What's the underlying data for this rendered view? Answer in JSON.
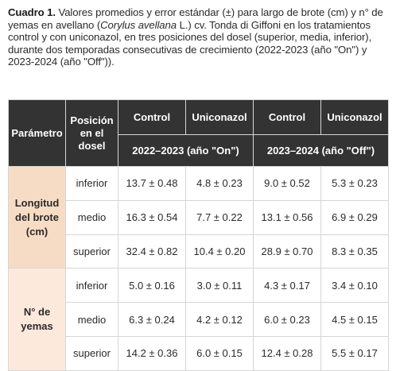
{
  "caption": {
    "label": "Cuadro 1.",
    "part1": " Valores promedios y error estándar (±) para largo de brote (cm) y n° de yemas en avellano (",
    "species": "Corylus avellana",
    "part2": " L.) cv. Tonda di Giffoni en los tratamientos control y con uniconazol, en tres posiciones del dosel (superior, media, inferior), durante dos temporadas consecutivas de crecimiento (2022-2023 (año \"On\") y 2023-2024 (año \"Off\"))."
  },
  "table": {
    "header": {
      "parametro": "Parámetro",
      "posicion": "Posición en el dosel",
      "treatments": [
        "Control",
        "Uniconazol",
        "Control",
        "Uniconazol"
      ],
      "seasons": [
        "2022–2023 (año \"On\")",
        "2023–2024 (año \"Off\")"
      ]
    },
    "groups": [
      {
        "parameter": "Longitud del brote (cm)",
        "rows": [
          {
            "position": "inferior",
            "values": [
              "13.7 ± 0.48",
              "4.8 ± 0.23",
              "9.0 ± 0.52",
              "5.3 ± 0.23"
            ]
          },
          {
            "position": "medio",
            "values": [
              "16.3 ± 0.54",
              "7.7 ± 0.22",
              "13.1 ± 0.56",
              "6.9 ± 0.29"
            ]
          },
          {
            "position": "superior",
            "values": [
              "32.4 ± 0.82",
              "10.4 ± 0.20",
              "28.9 ± 0.70",
              "8.3 ± 0.35"
            ]
          }
        ]
      },
      {
        "parameter": "N° de yemas",
        "rows": [
          {
            "position": "inferior",
            "values": [
              "5.0 ± 0.16",
              "3.0 ± 0.11",
              "4.3 ± 0.17",
              "3.4 ± 0.10"
            ]
          },
          {
            "position": "medio",
            "values": [
              "6.3 ± 0.24",
              "4.2 ± 0.12",
              "6.0 ± 0.23",
              "4.5 ± 0.15"
            ]
          },
          {
            "position": "superior",
            "values": [
              "14.2 ± 0.36",
              "6.0 ± 0.15",
              "12.4 ± 0.28",
              "5.5 ± 0.17"
            ]
          }
        ]
      }
    ]
  }
}
